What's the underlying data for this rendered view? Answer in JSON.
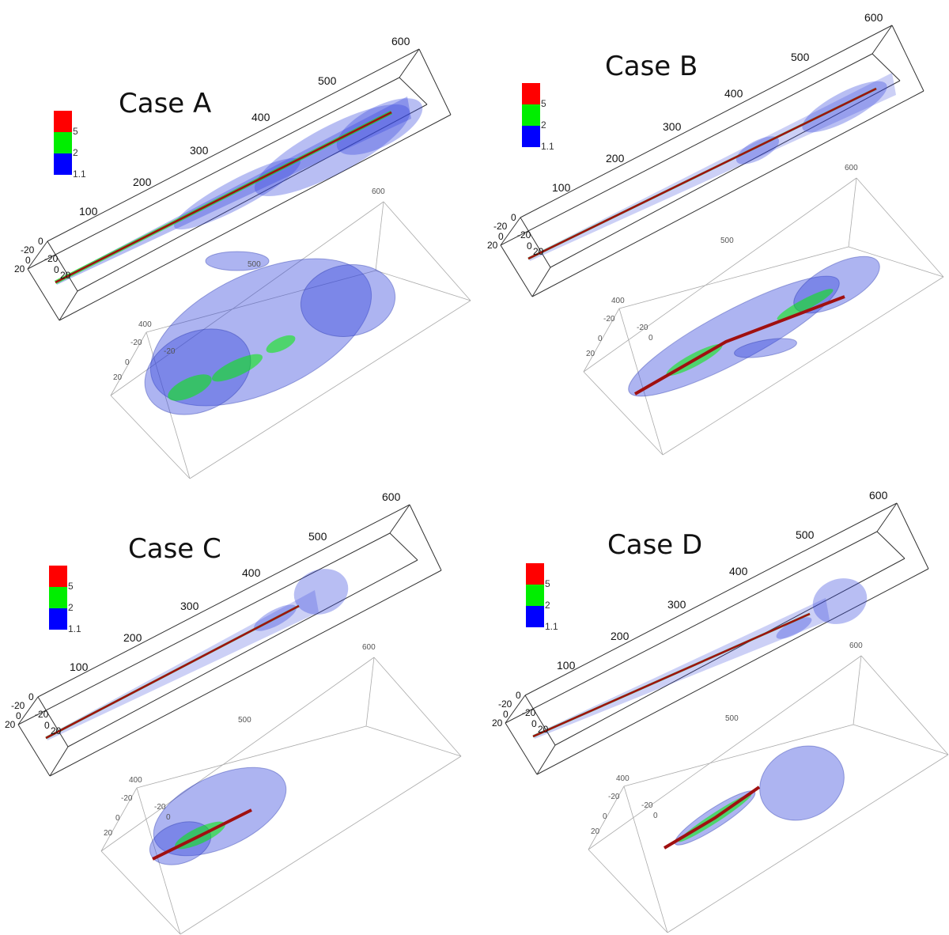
{
  "colors": {
    "high": "#ff0000",
    "mid": "#00ee00",
    "low": "#0000ff",
    "plume": "#3344dd",
    "core": "#a01010"
  },
  "panels": [
    {
      "id": "a",
      "title": "Case A",
      "legend": [
        "5",
        "2",
        "1.1"
      ],
      "upper_ticks": [
        "100",
        "200",
        "300",
        "400",
        "500",
        "600"
      ],
      "upper_small": [
        "0",
        "-20",
        "-20",
        "0",
        "20",
        "0",
        "20"
      ],
      "lower_ticks": [
        "600",
        "500",
        "400"
      ],
      "lower_small": [
        "-20",
        "-20",
        "0",
        "20"
      ]
    },
    {
      "id": "b",
      "title": "Case B",
      "legend": [
        "5",
        "2",
        "1.1"
      ],
      "upper_ticks": [
        "100",
        "200",
        "300",
        "400",
        "500",
        "600"
      ],
      "upper_small": [
        "0",
        "-20",
        "-20",
        "0",
        "20",
        "0",
        "20"
      ],
      "lower_ticks": [
        "600",
        "500",
        "400"
      ],
      "lower_small": [
        "-20",
        "-20",
        "0",
        "20",
        "0"
      ]
    },
    {
      "id": "c",
      "title": "Case C",
      "legend": [
        "5",
        "2",
        "1.1"
      ],
      "upper_ticks": [
        "100",
        "200",
        "300",
        "400",
        "500",
        "600"
      ],
      "upper_small": [
        "0",
        "-20",
        "-20",
        "0",
        "20",
        "0",
        "20"
      ],
      "lower_ticks": [
        "600",
        "500",
        "400"
      ],
      "lower_small": [
        "-20",
        "-20",
        "0",
        "20",
        "0"
      ]
    },
    {
      "id": "d",
      "title": "Case D",
      "legend": [
        "5",
        "2",
        "1.1"
      ],
      "upper_ticks": [
        "100",
        "200",
        "300",
        "400",
        "500",
        "600"
      ],
      "upper_small": [
        "0",
        "-20",
        "-20",
        "0",
        "20",
        "0",
        "20"
      ],
      "lower_ticks": [
        "600",
        "500",
        "400"
      ],
      "lower_small": [
        "-20",
        "-20",
        "0",
        "20",
        "0"
      ]
    }
  ]
}
